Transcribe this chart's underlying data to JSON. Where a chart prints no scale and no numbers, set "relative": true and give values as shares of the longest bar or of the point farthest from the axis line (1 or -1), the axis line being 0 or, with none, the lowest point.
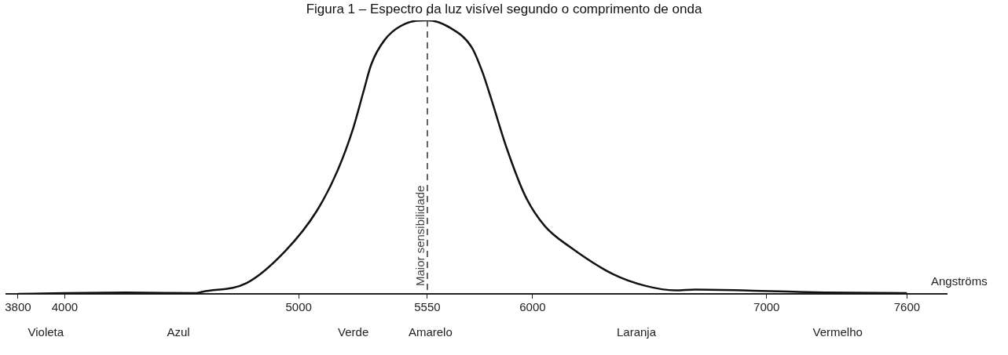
{
  "chart_data": {
    "type": "line",
    "title": "Figura 1 – Espectro da luz visível segundo o comprimento de onda",
    "xlabel": "Angströms",
    "relative": true,
    "series": [
      {
        "color": "#111111",
        "x": [
          3800,
          4262,
          4560,
          4590,
          4778,
          4944,
          5077,
          5167,
          5233,
          5277,
          5310,
          5367,
          5453,
          5550,
          5647,
          5740,
          5785,
          5820,
          5889,
          5969,
          6051,
          6164,
          6344,
          6484,
          6611,
          6696,
          6976,
          7250,
          7600
        ],
        "values": [
          0.0,
          0.005,
          0.003,
          0.008,
          0.04,
          0.158,
          0.303,
          0.453,
          0.606,
          0.74,
          0.839,
          0.928,
          0.987,
          1.0,
          0.973,
          0.901,
          0.812,
          0.721,
          0.533,
          0.357,
          0.249,
          0.169,
          0.072,
          0.029,
          0.013,
          0.016,
          0.011,
          0.005,
          0.003
        ]
      }
    ],
    "xlim": [
      3750,
      7770
    ],
    "xticks": [
      3800,
      4000,
      5000,
      5550,
      6000,
      7000,
      7600
    ],
    "ref_lines": [
      {
        "axis": "x",
        "value": 5550,
        "label": "Maior sensibilidade",
        "line_style": "dashed",
        "color": "#333333"
      }
    ],
    "annotations": [
      "Violeta",
      "Azul",
      "Verde",
      "Amarelo",
      "Laranja",
      "Vermelho"
    ],
    "grid": false,
    "legend": false,
    "marker": "none",
    "line_style": "solid"
  }
}
